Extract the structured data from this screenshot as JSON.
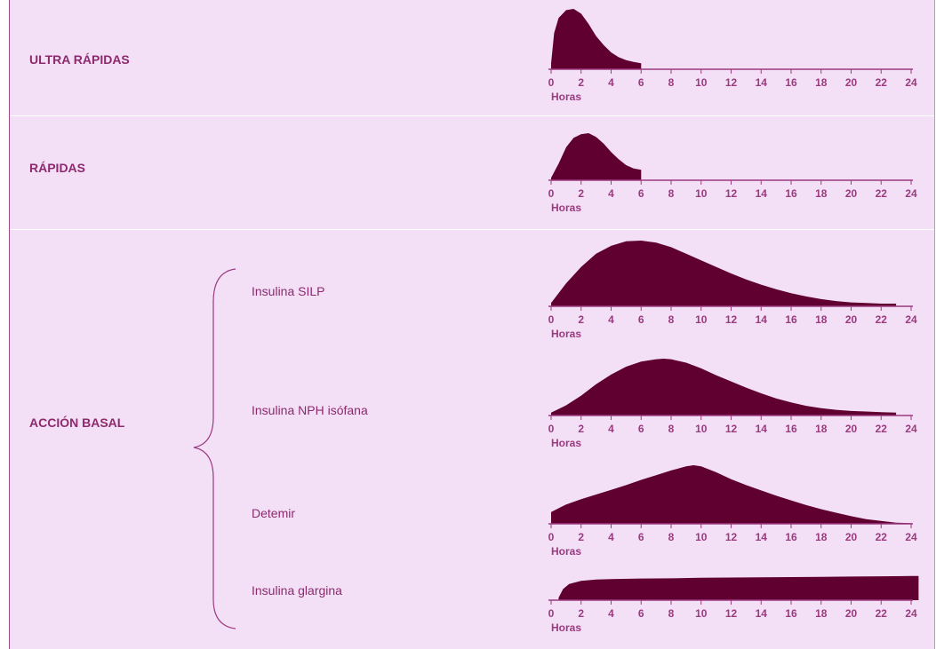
{
  "sections": {
    "ultra": "ULTRA RÁPIDAS",
    "rapid": "RÁPIDAS",
    "basal": "ACCIÓN BASAL"
  },
  "basal_types": [
    "Insulina SILP",
    "Insulina NPH isófana",
    "Detemir",
    "Insulina glargina"
  ],
  "colors": {
    "area": "#600030",
    "axis": "#9b3a7e",
    "text": "#8c2a6d",
    "background": "#f3e0f7"
  },
  "chart_data": [
    {
      "type": "area",
      "name": "ULTRA RÁPIDAS",
      "xlabel": "Horas",
      "xlim": [
        0,
        24
      ],
      "xticks": [
        0,
        2,
        4,
        6,
        8,
        10,
        12,
        14,
        16,
        18,
        20,
        22,
        24
      ],
      "x": [
        0,
        0.2,
        0.5,
        1,
        1.5,
        2,
        2.5,
        3,
        3.5,
        4,
        4.5,
        5,
        5.5,
        6
      ],
      "y": [
        0.1,
        0.6,
        0.85,
        0.98,
        1.0,
        0.92,
        0.75,
        0.55,
        0.4,
        0.28,
        0.2,
        0.15,
        0.12,
        0.1
      ]
    },
    {
      "type": "area",
      "name": "RÁPIDAS",
      "xlabel": "Horas",
      "xlim": [
        0,
        24
      ],
      "xticks": [
        0,
        2,
        4,
        6,
        8,
        10,
        12,
        14,
        16,
        18,
        20,
        22,
        24
      ],
      "x": [
        0,
        0.5,
        1,
        1.5,
        2,
        2.5,
        3,
        3.5,
        4,
        4.5,
        5,
        5.5,
        6
      ],
      "y": [
        0.05,
        0.35,
        0.7,
        0.9,
        0.98,
        1.0,
        0.92,
        0.78,
        0.6,
        0.45,
        0.32,
        0.25,
        0.22
      ]
    },
    {
      "type": "area",
      "name": "Insulina SILP",
      "xlabel": "Horas",
      "xlim": [
        0,
        24
      ],
      "xticks": [
        0,
        2,
        4,
        6,
        8,
        10,
        12,
        14,
        16,
        18,
        20,
        22,
        24
      ],
      "x": [
        0,
        1,
        2,
        3,
        4,
        5,
        6,
        7,
        8,
        9,
        10,
        11,
        12,
        13,
        14,
        15,
        16,
        17,
        18,
        19,
        20,
        21,
        22,
        23
      ],
      "y": [
        0.05,
        0.35,
        0.6,
        0.8,
        0.92,
        0.99,
        1.0,
        0.97,
        0.9,
        0.8,
        0.7,
        0.6,
        0.5,
        0.41,
        0.33,
        0.26,
        0.2,
        0.15,
        0.11,
        0.08,
        0.06,
        0.05,
        0.04,
        0.04
      ]
    },
    {
      "type": "area",
      "name": "Insulina NPH isófana",
      "xlabel": "Horas",
      "xlim": [
        0,
        24
      ],
      "xticks": [
        0,
        2,
        4,
        6,
        8,
        10,
        12,
        14,
        16,
        18,
        20,
        22,
        24
      ],
      "x": [
        0,
        1,
        2,
        3,
        4,
        5,
        6,
        7,
        7.5,
        8,
        9,
        10,
        11,
        12,
        13,
        14,
        15,
        16,
        17,
        18,
        19,
        20,
        21,
        22,
        23
      ],
      "y": [
        0.05,
        0.18,
        0.35,
        0.55,
        0.72,
        0.86,
        0.95,
        0.99,
        1.0,
        0.99,
        0.93,
        0.83,
        0.71,
        0.6,
        0.49,
        0.39,
        0.3,
        0.23,
        0.17,
        0.13,
        0.1,
        0.08,
        0.07,
        0.06,
        0.05
      ]
    },
    {
      "type": "area",
      "name": "Detemir",
      "xlabel": "Horas",
      "xlim": [
        0,
        24
      ],
      "xticks": [
        0,
        2,
        4,
        6,
        8,
        10,
        12,
        14,
        16,
        18,
        20,
        22,
        24
      ],
      "x": [
        0,
        1,
        2,
        3,
        4,
        5,
        6,
        7,
        8,
        9,
        9.5,
        10,
        11,
        12,
        13,
        14,
        15,
        16,
        17,
        18,
        19,
        20,
        21,
        22,
        23,
        24
      ],
      "y": [
        0.2,
        0.33,
        0.42,
        0.5,
        0.58,
        0.66,
        0.75,
        0.83,
        0.91,
        0.98,
        1.0,
        0.98,
        0.88,
        0.76,
        0.66,
        0.57,
        0.48,
        0.4,
        0.32,
        0.25,
        0.19,
        0.13,
        0.08,
        0.05,
        0.02,
        0.01
      ]
    },
    {
      "type": "area",
      "name": "Insulina glargina",
      "xlabel": "Horas",
      "xlim": [
        0,
        24
      ],
      "xticks": [
        0,
        2,
        4,
        6,
        8,
        10,
        12,
        14,
        16,
        18,
        20,
        22,
        24
      ],
      "x": [
        0.5,
        0.8,
        1.2,
        2,
        3,
        4,
        6,
        8,
        10,
        12,
        14,
        16,
        18,
        20,
        22,
        24,
        24.5
      ],
      "y": [
        0.1,
        0.45,
        0.65,
        0.78,
        0.83,
        0.85,
        0.87,
        0.88,
        0.9,
        0.91,
        0.92,
        0.93,
        0.94,
        0.95,
        0.96,
        0.97,
        0.97
      ]
    }
  ]
}
